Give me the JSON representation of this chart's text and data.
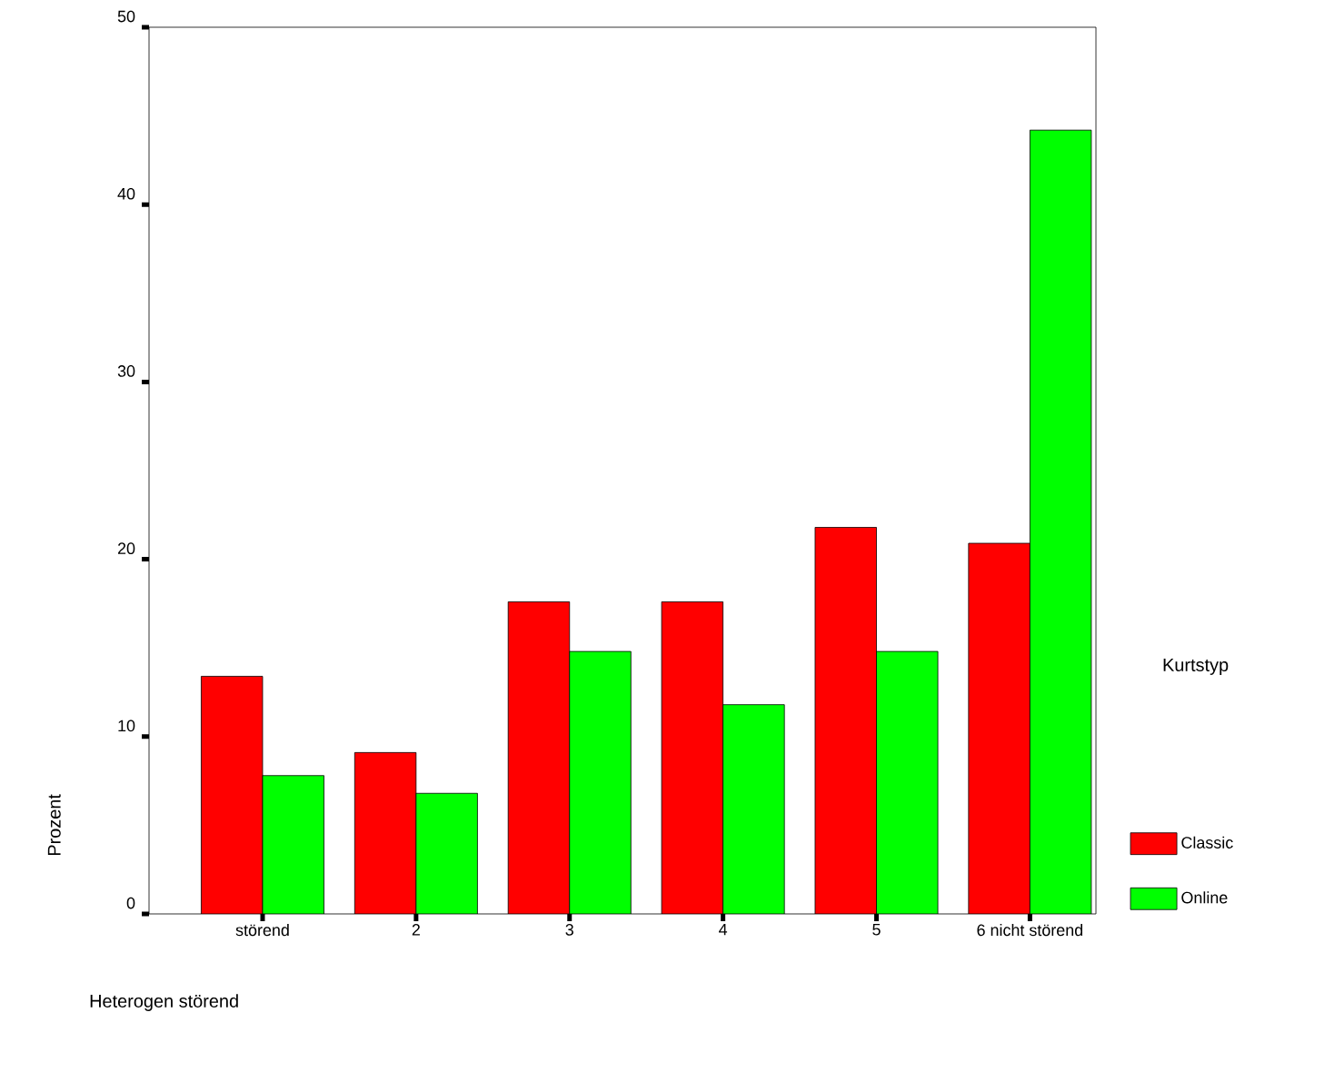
{
  "chart_data": {
    "type": "bar",
    "xlabel": "Heterogen störend",
    "ylabel": "Prozent",
    "legend_title": "Kurtstyp",
    "categories": [
      "störend",
      "2",
      "3",
      "4",
      "5",
      "6 nicht störend"
    ],
    "series": [
      {
        "name": "Classic",
        "color": "#ff0000",
        "values": [
          13.4,
          9.1,
          17.6,
          17.6,
          21.8,
          20.9
        ]
      },
      {
        "name": "Online",
        "color": "#00ff00",
        "values": [
          7.8,
          6.8,
          14.8,
          11.8,
          14.8,
          44.2
        ]
      }
    ],
    "ylim": [
      0,
      50
    ],
    "yticks": [
      0,
      10,
      20,
      30,
      40,
      50
    ],
    "grid": false,
    "legend": "right"
  }
}
